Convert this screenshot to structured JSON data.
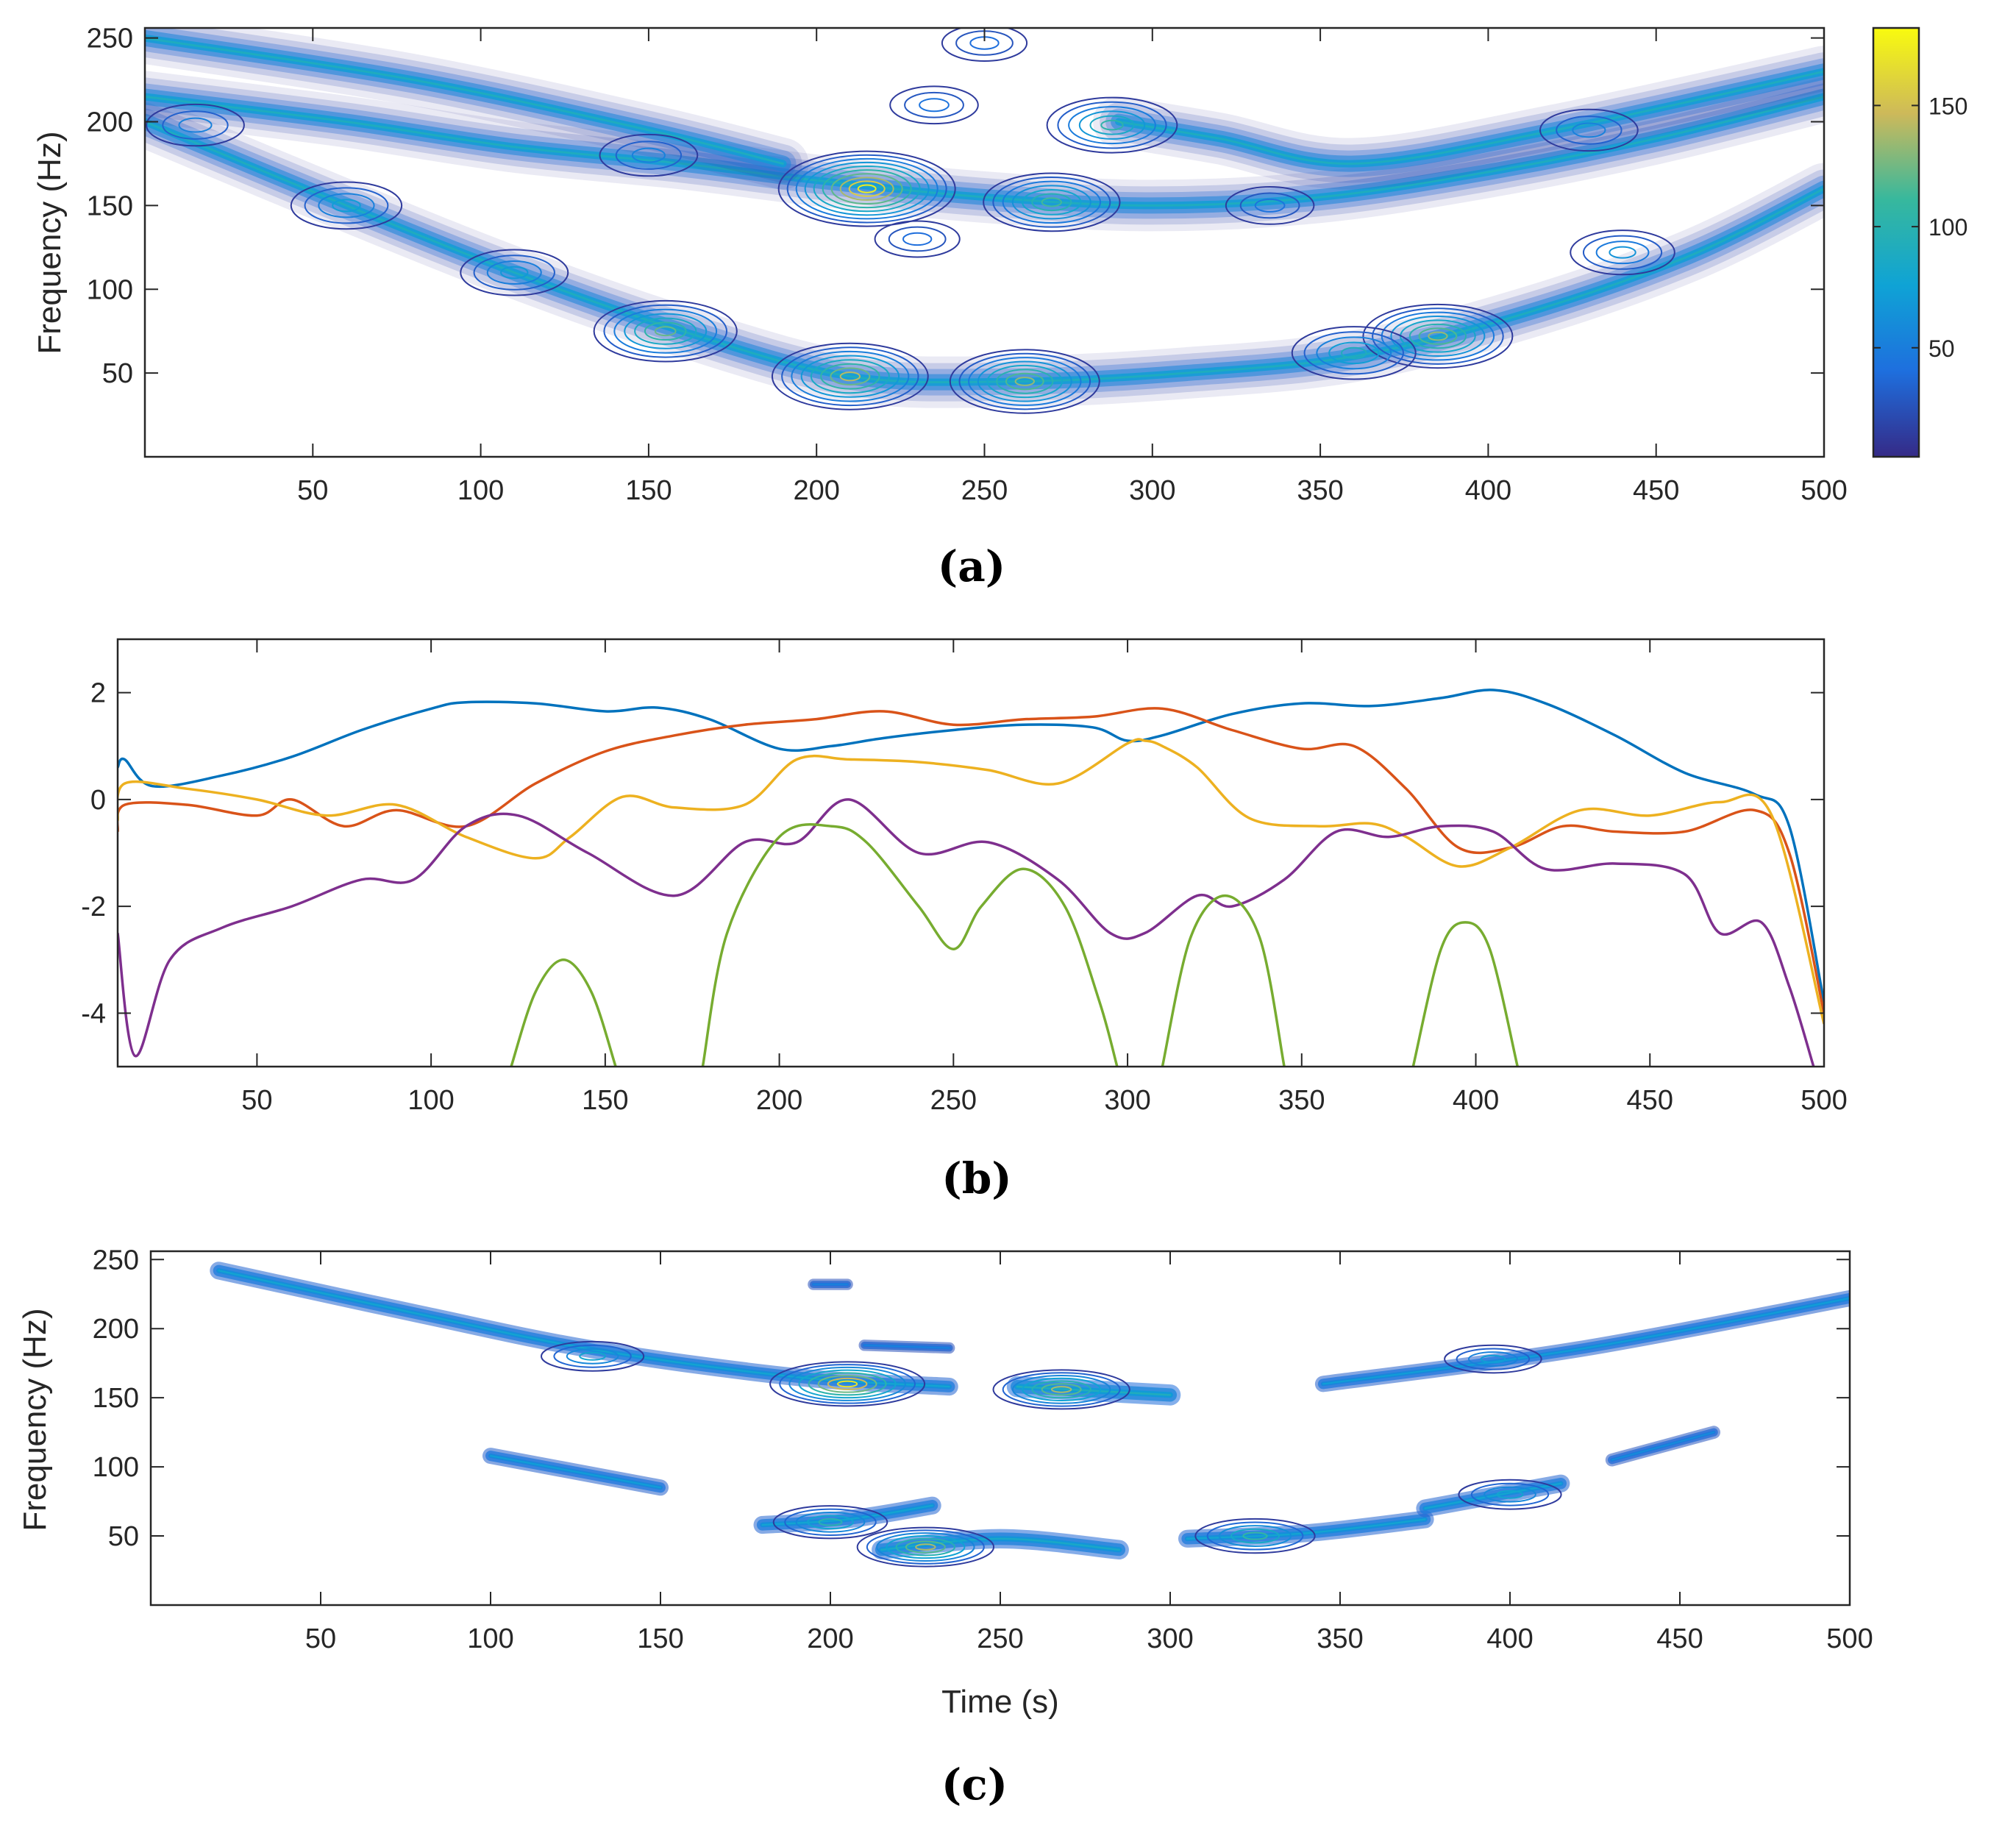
{
  "panels": [
    {
      "label": "(a)",
      "chart_data": {
        "type": "contour",
        "title": "",
        "xlabel": "",
        "ylabel": "Frequency (Hz)",
        "xlim": [
          0,
          500
        ],
        "ylim": [
          0,
          256
        ],
        "xticks": [
          50,
          100,
          150,
          200,
          250,
          300,
          350,
          400,
          450,
          500
        ],
        "yticks": [
          50,
          100,
          150,
          200,
          250
        ],
        "colorbar": {
          "min": 5,
          "max": 182,
          "ticks": [
            50,
            100,
            150
          ]
        },
        "ridges": [
          {
            "x": [
              0,
              60,
              110,
              160,
              210,
              260,
              310,
              360,
              410,
              460,
              500
            ],
            "y": [
              200,
              150,
              110,
              75,
              48,
              45,
              50,
              60,
              85,
              120,
              160
            ]
          },
          {
            "x": [
              0,
              60,
              110,
              160,
              200,
              250,
              300,
              350,
              400,
              450,
              500
            ],
            "y": [
              215,
              200,
              185,
              175,
              165,
              155,
              150,
              155,
              170,
              190,
              215
            ]
          },
          {
            "x": [
              0,
              80,
              150,
              190
            ],
            "y": [
              250,
              225,
              195,
              175
            ]
          },
          {
            "x": [
              290,
              320,
              360,
              420,
              500
            ],
            "y": [
              200,
              190,
              175,
              195,
              230
            ]
          }
        ],
        "hotspots": [
          {
            "x": 215,
            "y": 160,
            "value": 182
          },
          {
            "x": 270,
            "y": 152,
            "value": 120
          },
          {
            "x": 288,
            "y": 198,
            "value": 110
          },
          {
            "x": 210,
            "y": 48,
            "value": 150
          },
          {
            "x": 262,
            "y": 45,
            "value": 140
          },
          {
            "x": 155,
            "y": 75,
            "value": 130
          },
          {
            "x": 385,
            "y": 72,
            "value": 140
          },
          {
            "x": 360,
            "y": 62,
            "value": 100
          },
          {
            "x": 60,
            "y": 150,
            "value": 80
          },
          {
            "x": 110,
            "y": 110,
            "value": 75
          },
          {
            "x": 15,
            "y": 198,
            "value": 60
          },
          {
            "x": 150,
            "y": 180,
            "value": 60
          },
          {
            "x": 440,
            "y": 122,
            "value": 70
          },
          {
            "x": 430,
            "y": 195,
            "value": 60
          },
          {
            "x": 250,
            "y": 247,
            "value": 40
          },
          {
            "x": 235,
            "y": 210,
            "value": 45
          },
          {
            "x": 335,
            "y": 150,
            "value": 45
          },
          {
            "x": 230,
            "y": 130,
            "value": 40
          }
        ]
      }
    },
    {
      "label": "(b)",
      "chart_data": {
        "type": "line",
        "title": "",
        "xlabel": "",
        "ylabel": "",
        "xlim": [
          10,
          500
        ],
        "ylim": [
          -5,
          3
        ],
        "xticks": [
          50,
          100,
          150,
          200,
          250,
          300,
          350,
          400,
          450,
          500
        ],
        "yticks": [
          2,
          0,
          -2,
          -4
        ],
        "series": [
          {
            "color": "#0072BD",
            "x": [
              10,
              12,
              20,
              40,
              60,
              80,
              100,
              110,
              130,
              150,
              165,
              180,
              200,
              215,
              230,
              250,
              270,
              290,
              300,
              310,
              330,
              350,
              370,
              390,
              405,
              420,
              440,
              460,
              480,
              490,
              500
            ],
            "y": [
              0.6,
              0.75,
              0.25,
              0.45,
              0.8,
              1.3,
              1.7,
              1.82,
              1.8,
              1.65,
              1.72,
              1.5,
              0.95,
              1.0,
              1.15,
              1.3,
              1.4,
              1.35,
              1.1,
              1.2,
              1.6,
              1.8,
              1.75,
              1.9,
              2.05,
              1.8,
              1.2,
              0.5,
              0.1,
              -0.5,
              -3.8
            ]
          },
          {
            "color": "#D95319",
            "x": [
              10,
              12,
              30,
              50,
              60,
              75,
              90,
              110,
              130,
              150,
              170,
              190,
              210,
              230,
              250,
              270,
              290,
              310,
              330,
              350,
              365,
              380,
              395,
              410,
              425,
              440,
              460,
              480,
              490,
              500
            ],
            "y": [
              -0.6,
              -0.1,
              -0.1,
              -0.3,
              0.0,
              -0.5,
              -0.2,
              -0.5,
              0.3,
              0.9,
              1.2,
              1.4,
              1.5,
              1.65,
              1.4,
              1.5,
              1.55,
              1.7,
              1.3,
              0.95,
              1.0,
              0.2,
              -0.9,
              -0.9,
              -0.5,
              -0.6,
              -0.6,
              -0.2,
              -1.0,
              -4.0
            ]
          },
          {
            "color": "#EDB120",
            "x": [
              10,
              12,
              30,
              50,
              70,
              90,
              110,
              130,
              140,
              155,
              170,
              190,
              205,
              220,
              240,
              260,
              280,
              300,
              305,
              310,
              320,
              335,
              355,
              370,
              380,
              395,
              410,
              430,
              450,
              470,
              485,
              500
            ],
            "y": [
              -0.4,
              0.3,
              0.2,
              0.0,
              -0.3,
              -0.1,
              -0.7,
              -1.1,
              -0.7,
              0.05,
              -0.15,
              -0.1,
              0.75,
              0.75,
              0.7,
              0.55,
              0.3,
              1.05,
              1.1,
              1.0,
              0.6,
              -0.35,
              -0.5,
              -0.45,
              -0.7,
              -1.25,
              -0.9,
              -0.2,
              -0.3,
              -0.05,
              -0.3,
              -4.2
            ]
          },
          {
            "color": "#7E2F8E",
            "x": [
              10,
              15,
              25,
              40,
              60,
              80,
              95,
              110,
              125,
              145,
              170,
              190,
              205,
              220,
              240,
              260,
              280,
              295,
              305,
              320,
              330,
              345,
              360,
              375,
              390,
              405,
              420,
              440,
              460,
              470,
              482,
              490,
              497
            ],
            "y": [
              -2.5,
              -4.8,
              -3.0,
              -2.4,
              -2.0,
              -1.5,
              -1.5,
              -0.5,
              -0.3,
              -1.0,
              -1.8,
              -0.8,
              -0.8,
              0.0,
              -1.0,
              -0.8,
              -1.5,
              -2.5,
              -2.5,
              -1.8,
              -2.0,
              -1.5,
              -0.6,
              -0.7,
              -0.5,
              -0.6,
              -1.3,
              -1.2,
              -1.4,
              -2.5,
              -2.3,
              -3.5,
              -5.0
            ]
          },
          {
            "color": "#77AC30",
            "segments": [
              {
                "x": [
                  123,
                  130,
                  138,
                  146,
                  153
                ],
                "y": [
                  -5.0,
                  -3.6,
                  -3.0,
                  -3.6,
                  -5.0
                ]
              },
              {
                "x": [
                  178,
                  185,
                  200,
                  215,
                  225,
                  240,
                  250,
                  258,
                  270,
                  282,
                  292,
                  297
                ],
                "y": [
                  -5.0,
                  -2.5,
                  -0.7,
                  -0.5,
                  -0.8,
                  -2.0,
                  -2.8,
                  -2.0,
                  -1.3,
                  -2.0,
                  -3.8,
                  -5.0
                ]
              },
              {
                "x": [
                  310,
                  318,
                  328,
                  338,
                  345
                ],
                "y": [
                  -5.0,
                  -2.6,
                  -1.8,
                  -2.6,
                  -5.0
                ]
              },
              {
                "x": [
                  382,
                  390,
                  397,
                  404,
                  412
                ],
                "y": [
                  -5.0,
                  -2.8,
                  -2.3,
                  -2.8,
                  -5.0
                ]
              }
            ]
          }
        ]
      }
    },
    {
      "label": "(c)",
      "chart_data": {
        "type": "contour",
        "title": "",
        "xlabel": "Time (s)",
        "ylabel": "Frequency (Hz)",
        "xlim": [
          0,
          500
        ],
        "ylim": [
          0,
          256
        ],
        "xticks": [
          50,
          100,
          150,
          200,
          250,
          300,
          350,
          400,
          450,
          500
        ],
        "yticks": [
          50,
          100,
          150,
          200,
          250
        ],
        "ridges": [
          {
            "x": [
              20,
              80,
              130,
              190,
              235
            ],
            "y": [
              242,
              210,
              185,
              165,
              158
            ],
            "strength": 0.6
          },
          {
            "x": [
              195,
              205
            ],
            "y": [
              232,
              232
            ],
            "strength": 0.2
          },
          {
            "x": [
              210,
              235
            ],
            "y": [
              188,
              186
            ],
            "strength": 0.2
          },
          {
            "x": [
              255,
              300
            ],
            "y": [
              158,
              152
            ],
            "strength": 0.8
          },
          {
            "x": [
              345,
              420,
              500
            ],
            "y": [
              160,
              185,
              222
            ],
            "strength": 0.5
          },
          {
            "x": [
              100,
              150
            ],
            "y": [
              108,
              85
            ],
            "strength": 0.5
          },
          {
            "x": [
              430,
              460
            ],
            "y": [
              105,
              125
            ],
            "strength": 0.3
          },
          {
            "x": [
              180,
              205,
              230
            ],
            "y": [
              58,
              62,
              72
            ],
            "strength": 0.6
          },
          {
            "x": [
              215,
              250,
              285
            ],
            "y": [
              40,
              48,
              40
            ],
            "strength": 0.7
          },
          {
            "x": [
              305,
              340,
              375
            ],
            "y": [
              48,
              52,
              62
            ],
            "strength": 0.6
          },
          {
            "x": [
              375,
              415
            ],
            "y": [
              70,
              88
            ],
            "strength": 0.6
          }
        ],
        "hotspots": [
          {
            "x": 205,
            "y": 160,
            "value": 182
          },
          {
            "x": 268,
            "y": 156,
            "value": 150
          },
          {
            "x": 228,
            "y": 42,
            "value": 150
          },
          {
            "x": 325,
            "y": 50,
            "value": 120
          },
          {
            "x": 200,
            "y": 60,
            "value": 110
          },
          {
            "x": 130,
            "y": 180,
            "value": 90
          },
          {
            "x": 400,
            "y": 80,
            "value": 90
          },
          {
            "x": 395,
            "y": 178,
            "value": 80
          }
        ]
      }
    }
  ]
}
